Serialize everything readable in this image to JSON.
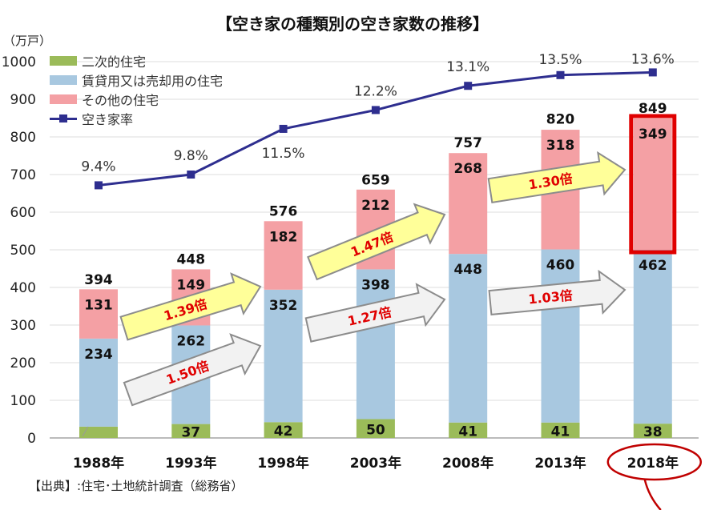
{
  "chart_data": {
    "type": "bar",
    "stacked": true,
    "title": "【空き家の種類別の空き家数の推移】",
    "ylabel": "（万戸）",
    "ylim": [
      0,
      1000
    ],
    "yticks": [
      0,
      100,
      200,
      300,
      400,
      500,
      600,
      700,
      800,
      900,
      1000
    ],
    "grid": true,
    "legend_position": "top-left",
    "categories": [
      "1988年",
      "1993年",
      "1998年",
      "2003年",
      "2008年",
      "2013年",
      "2018年"
    ],
    "series": [
      {
        "name": "二次的住宅",
        "color": "#9bbb59",
        "values": [
          30,
          37,
          42,
          50,
          41,
          41,
          38
        ]
      },
      {
        "name": "賃貸用又は売却用の住宅",
        "color": "#a8c8e0",
        "values": [
          234,
          262,
          352,
          398,
          448,
          460,
          462
        ]
      },
      {
        "name": "その他の住宅",
        "color": "#f4a0a4",
        "values": [
          131,
          149,
          182,
          212,
          268,
          318,
          349
        ]
      }
    ],
    "totals": [
      394,
      448,
      576,
      659,
      757,
      820,
      849
    ],
    "line_series": {
      "name": "空き家率",
      "color": "#2e2e8f",
      "values": [
        9.4,
        9.8,
        11.5,
        12.2,
        13.1,
        13.5,
        13.6
      ],
      "labels": [
        "9.4%",
        "9.8%",
        "11.5%",
        "12.2%",
        "13.1%",
        "13.5%",
        "13.6%"
      ],
      "ylim": [
        0,
        14
      ]
    },
    "annotations": [
      {
        "text": "1.50倍",
        "style": "gray"
      },
      {
        "text": "1.39倍",
        "style": "yellow"
      },
      {
        "text": "1.27倍",
        "style": "gray"
      },
      {
        "text": "1.47倍",
        "style": "yellow"
      },
      {
        "text": "1.03倍",
        "style": "gray"
      },
      {
        "text": "1.30倍",
        "style": "yellow"
      }
    ],
    "highlight_color": "#e00000",
    "source": "【出典】:住宅･土地統計調査（総務省）"
  }
}
